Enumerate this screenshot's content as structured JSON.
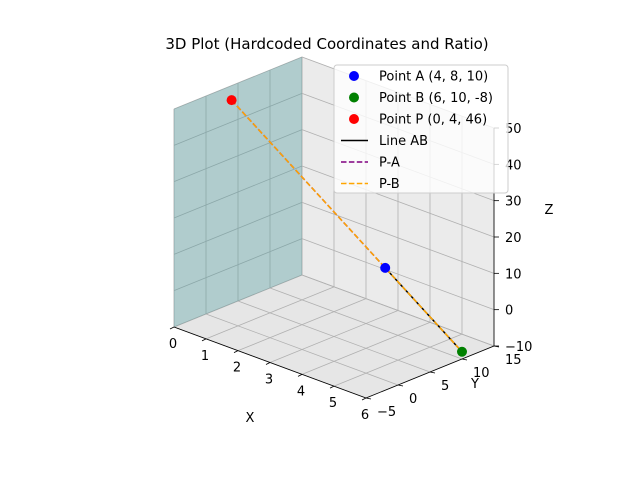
{
  "chart_data": {
    "type": "scatter",
    "subtype": "3d",
    "title": "3D Plot (Hardcoded Coordinates and Ratio)",
    "xlabel": "X",
    "ylabel": "Y",
    "zlabel": "Z",
    "xlim": [
      0,
      6
    ],
    "ylim": [
      -5,
      15
    ],
    "zlim": [
      -10,
      50
    ],
    "xticks": [
      "0",
      "1",
      "2",
      "3",
      "4",
      "5",
      "6"
    ],
    "yticks": [
      "−5",
      "0",
      "5",
      "10",
      "15"
    ],
    "zticks": [
      "−10",
      "0",
      "10",
      "20",
      "30",
      "40",
      "50"
    ],
    "grid": true,
    "legend_position": "top-right",
    "points": [
      {
        "name": "Point A (4, 8, 10)",
        "x": 4,
        "y": 8,
        "z": 10,
        "color": "#0000ff"
      },
      {
        "name": "Point B (6, 10, -8)",
        "x": 6,
        "y": 10,
        "z": -8,
        "color": "#008000"
      },
      {
        "name": "Point P (0, 4, 46)",
        "x": 0,
        "y": 4,
        "z": 46,
        "color": "#ff0000"
      }
    ],
    "lines": [
      {
        "name": "Line AB",
        "from": [
          4,
          8,
          10
        ],
        "to": [
          6,
          10,
          -8
        ],
        "color": "#000000",
        "dash": false
      },
      {
        "name": "P-A",
        "from": [
          0,
          4,
          46
        ],
        "to": [
          4,
          8,
          10
        ],
        "color": "#800080",
        "dash": true
      },
      {
        "name": "P-B",
        "from": [
          0,
          4,
          46
        ],
        "to": [
          6,
          10,
          -8
        ],
        "color": "#ffa500",
        "dash": true
      }
    ],
    "plane": {
      "x": 0,
      "y_range": [
        -5,
        15
      ],
      "z_range": [
        -10,
        50
      ],
      "color": "#5f9ea0",
      "opacity": 0.45
    }
  }
}
